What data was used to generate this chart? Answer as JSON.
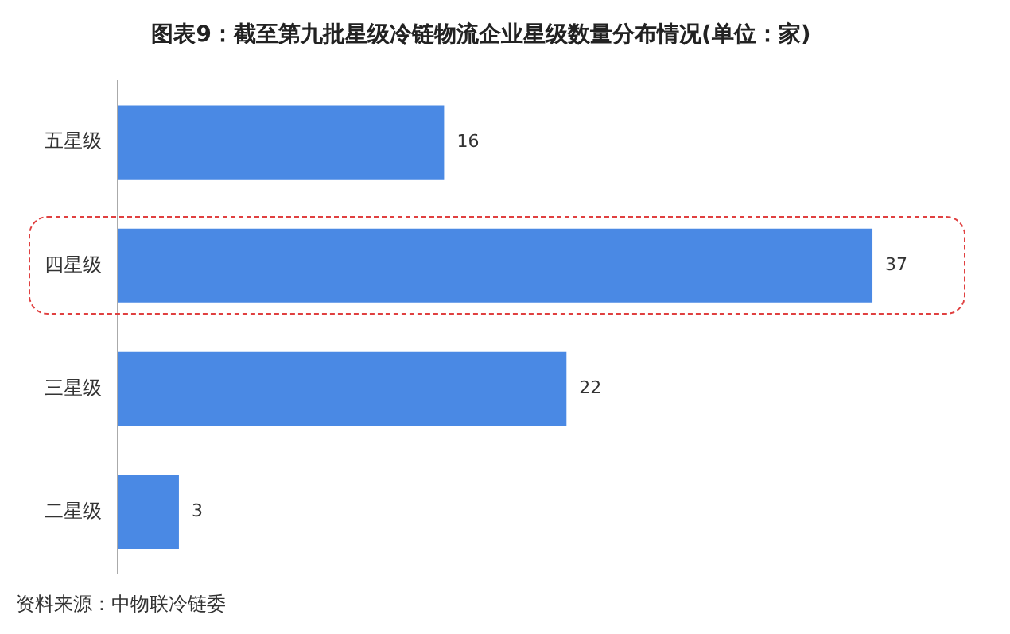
{
  "chart_data": {
    "type": "bar",
    "orientation": "horizontal",
    "title": "图表9：截至第九批星级冷链物流企业星级数量分布情况(单位：家)",
    "categories": [
      "五星级",
      "四星级",
      "三星级",
      "二星级"
    ],
    "values": [
      16,
      37,
      22,
      3
    ],
    "color": "#4a89e4",
    "data_labels": true,
    "annotations": [
      "资料来源：中物联冷链委"
    ]
  }
}
